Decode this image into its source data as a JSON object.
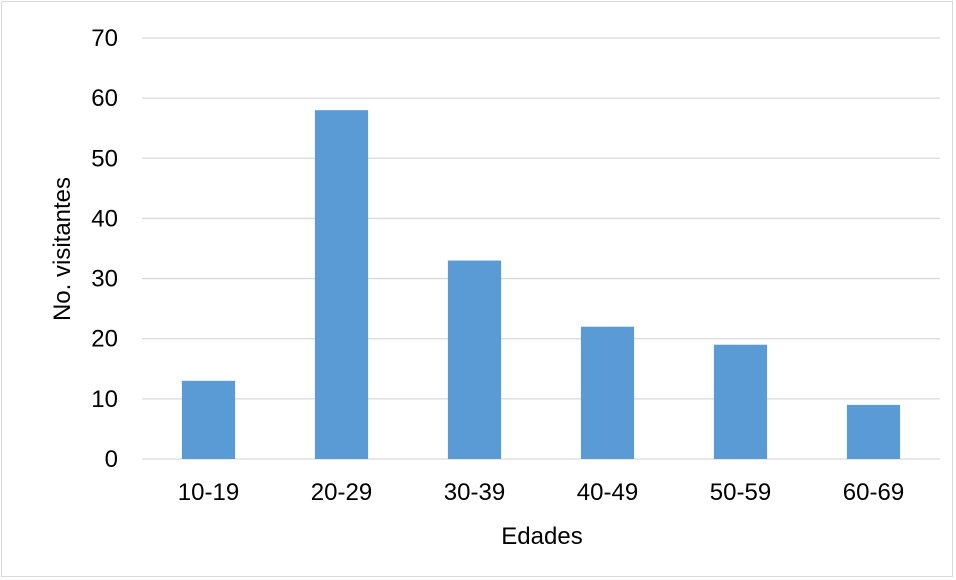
{
  "chart_data": {
    "type": "bar",
    "title": "",
    "xlabel": "Edades",
    "ylabel": "No. visitantes",
    "categories": [
      "10-19",
      "20-29",
      "30-39",
      "40-49",
      "50-59",
      "60-69"
    ],
    "values": [
      13,
      58,
      33,
      22,
      19,
      9
    ],
    "ylim": [
      0,
      70
    ],
    "yticks": [
      0,
      10,
      20,
      30,
      40,
      50,
      60,
      70
    ],
    "grid": true,
    "legend": "none",
    "bar_color": "#5B9BD5",
    "grid_color": "#D9D9D9"
  }
}
